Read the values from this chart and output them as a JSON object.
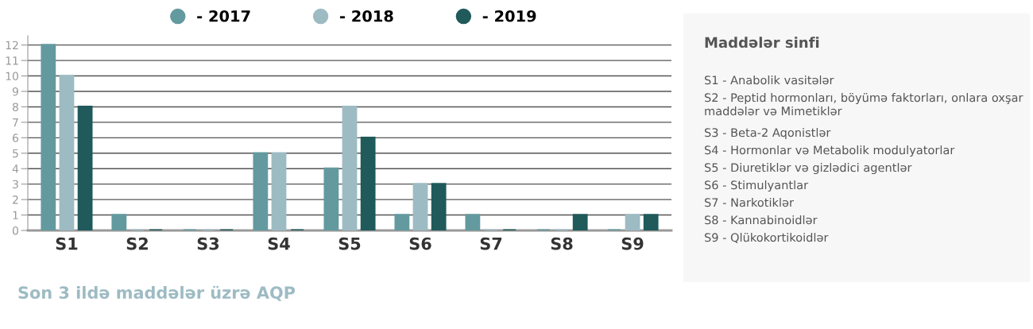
{
  "chart_data": {
    "type": "bar",
    "title": "Son 3 ildə maddələr üzrə AQP",
    "categories": [
      "S1",
      "S2",
      "S3",
      "S4",
      "S5",
      "S6",
      "S7",
      "S8",
      "S9"
    ],
    "series": [
      {
        "name": "- 2017",
        "color": "#639a9f",
        "values": [
          12,
          1,
          0,
          5,
          4,
          1,
          1,
          0,
          0
        ]
      },
      {
        "name": "- 2018",
        "color": "#9dbbc3",
        "values": [
          10,
          0,
          0,
          5,
          8,
          3,
          0,
          0,
          1
        ]
      },
      {
        "name": "- 2019",
        "color": "#205a5b",
        "values": [
          8,
          0,
          0,
          0,
          6,
          3,
          0,
          1,
          1
        ]
      }
    ],
    "ylim": [
      0,
      12.6
    ],
    "yticks": [
      0,
      1,
      2,
      3,
      4,
      5,
      6,
      7,
      8,
      9,
      10,
      11,
      12
    ],
    "grid": "y",
    "legend": "top",
    "annotations": [
      "Maddələr sinfi",
      "S1 - Anabolik vasitələr",
      "S2 - Peptid hormonları, böyümə faktorları, onlara oxşar maddələr və Mimetiklər",
      "S3 - Beta-2 Aqonistlər",
      "S4 - Hormonlar və Metabolik modulyatorlar",
      "S5 - Diuretiklər və gizlədici agentlər",
      "S6 - Stimulyantlar",
      "S7 - Narkotiklər",
      "S8 - Kannabinoidlər",
      "S9 - Qlükokortikoidlər"
    ]
  }
}
